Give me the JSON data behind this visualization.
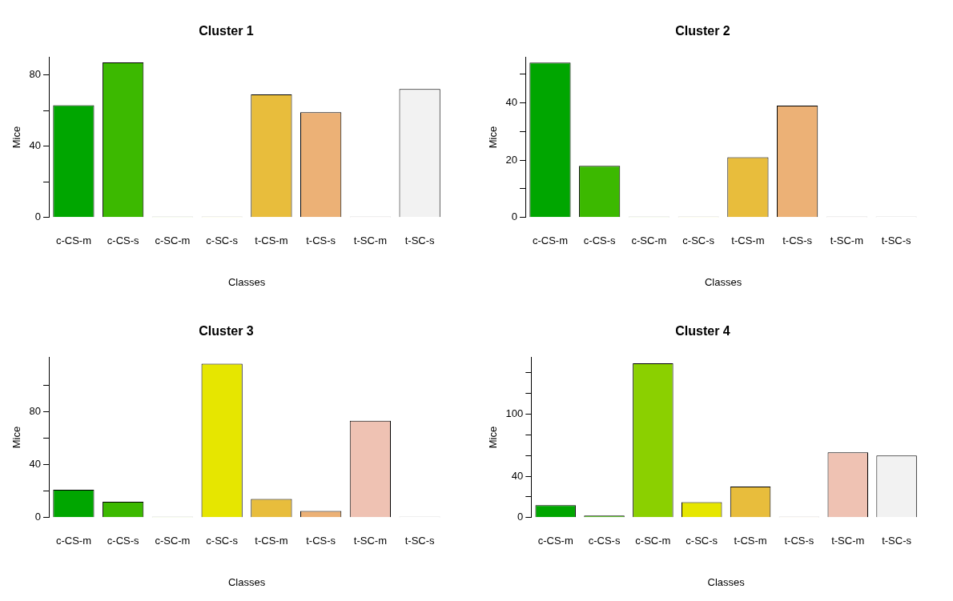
{
  "chart_data": [
    {
      "type": "bar",
      "title": "Cluster 1",
      "xlabel": "Classes",
      "ylabel": "Mice",
      "categories": [
        "c-CS-m",
        "c-CS-s",
        "c-SC-m",
        "c-SC-s",
        "t-CS-m",
        "t-CS-s",
        "t-SC-m",
        "t-SC-s"
      ],
      "values": [
        63,
        87,
        0,
        0,
        69,
        59,
        0,
        72
      ],
      "colors": [
        "#00a600",
        "#3cb900",
        "#8bd000",
        "#e6e600",
        "#e8bd3c",
        "#ecb176",
        "#efc2b3",
        "#f2f2f2"
      ],
      "ylim": [
        0,
        90
      ],
      "yticks": [
        0,
        {
          "value": 20,
          "label": null
        },
        40,
        {
          "value": 60,
          "label": null
        },
        80
      ]
    },
    {
      "type": "bar",
      "title": "Cluster 2",
      "xlabel": "Classes",
      "ylabel": "Mice",
      "categories": [
        "c-CS-m",
        "c-CS-s",
        "c-SC-m",
        "c-SC-s",
        "t-CS-m",
        "t-CS-s",
        "t-SC-m",
        "t-SC-s"
      ],
      "values": [
        54,
        18,
        0,
        0,
        21,
        39,
        0,
        0
      ],
      "colors": [
        "#00a600",
        "#3cb900",
        "#8bd000",
        "#e6e600",
        "#e8bd3c",
        "#ecb176",
        "#efc2b3",
        "#f2f2f2"
      ],
      "ylim": [
        0,
        56
      ],
      "yticks": [
        0,
        {
          "value": 10,
          "label": null
        },
        20,
        {
          "value": 30,
          "label": null
        },
        40,
        {
          "value": 50,
          "label": null
        }
      ]
    },
    {
      "type": "bar",
      "title": "Cluster 3",
      "xlabel": "Classes",
      "ylabel": "Mice",
      "categories": [
        "c-CS-m",
        "c-CS-s",
        "c-SC-m",
        "c-SC-s",
        "t-CS-m",
        "t-CS-s",
        "t-SC-m",
        "t-SC-s"
      ],
      "values": [
        21,
        12,
        0,
        116,
        14,
        5,
        73,
        0
      ],
      "colors": [
        "#00a600",
        "#3cb900",
        "#8bd000",
        "#e6e600",
        "#e8bd3c",
        "#ecb176",
        "#efc2b3",
        "#f2f2f2"
      ],
      "ylim": [
        0,
        121
      ],
      "yticks": [
        0,
        {
          "value": 20,
          "label": null
        },
        40,
        {
          "value": 60,
          "label": null
        },
        80,
        {
          "value": 100,
          "label": null
        }
      ]
    },
    {
      "type": "bar",
      "title": "Cluster 4",
      "xlabel": "Classes",
      "ylabel": "Mice",
      "categories": [
        "c-CS-m",
        "c-CS-s",
        "c-SC-m",
        "c-SC-s",
        "t-CS-m",
        "t-CS-s",
        "t-SC-m",
        "t-SC-s"
      ],
      "values": [
        12,
        2,
        149,
        15,
        30,
        0,
        63,
        60
      ],
      "colors": [
        "#00a600",
        "#3cb900",
        "#8bd000",
        "#e6e600",
        "#e8bd3c",
        "#ecb176",
        "#efc2b3",
        "#f2f2f2"
      ],
      "ylim": [
        0,
        155
      ],
      "yticks": [
        0,
        {
          "value": 20,
          "label": null
        },
        40,
        {
          "value": 60,
          "label": null
        },
        {
          "value": 80,
          "label": null
        },
        100,
        {
          "value": 120,
          "label": null
        },
        {
          "value": 140,
          "label": null
        }
      ]
    }
  ]
}
